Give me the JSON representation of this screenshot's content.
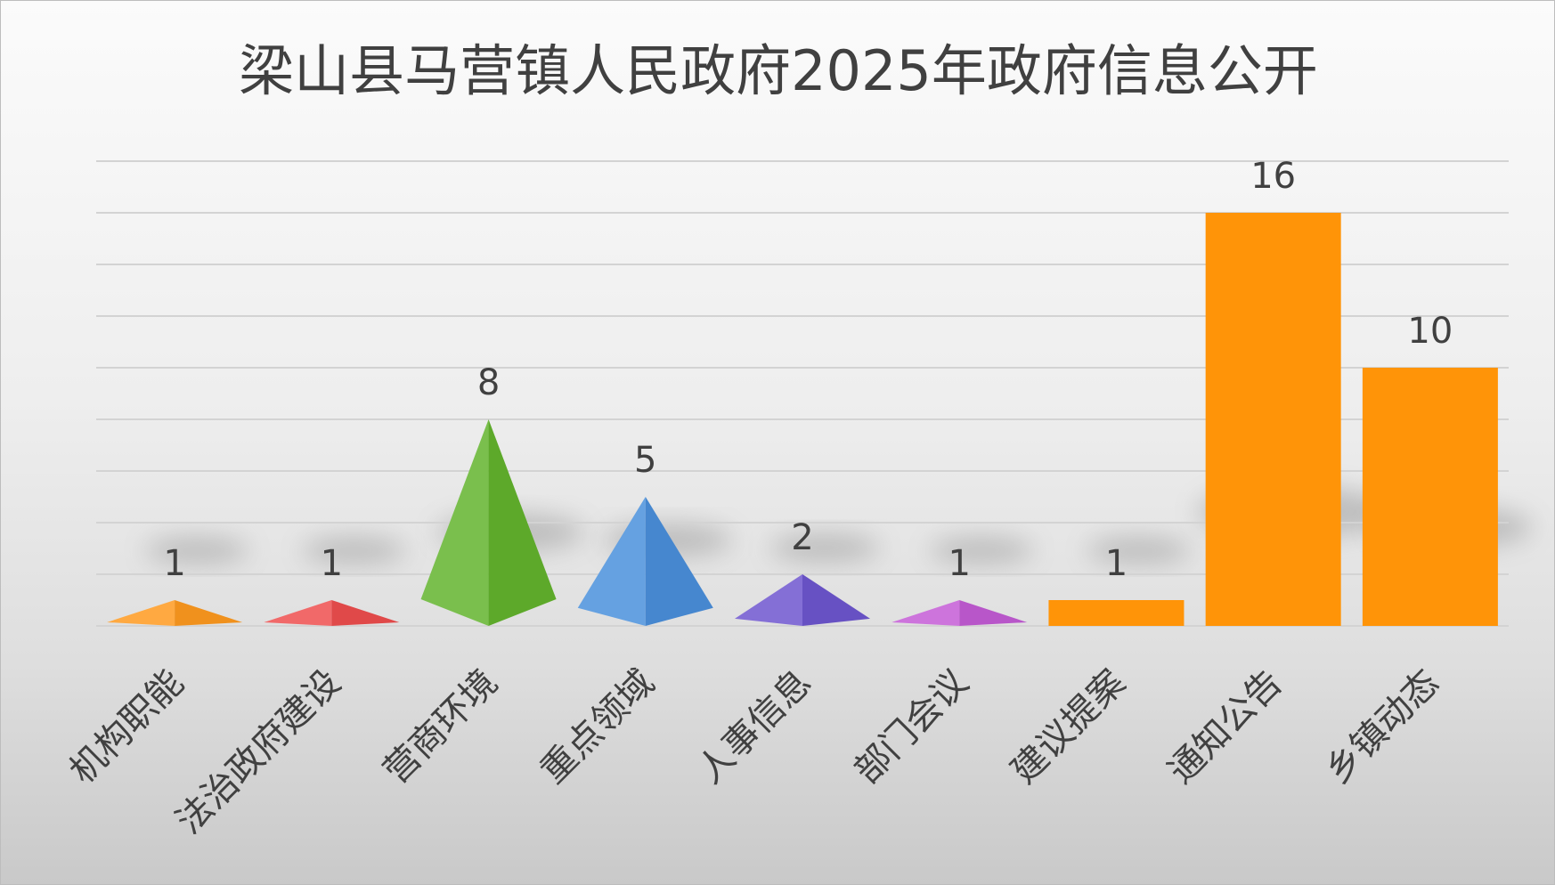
{
  "chart_data": {
    "type": "bar",
    "title": "梁山县马营镇人民政府2025年政府信息公开",
    "xlabel": "",
    "ylabel": "",
    "ylim": [
      0,
      18
    ],
    "grid": true,
    "categories": [
      "机构职能",
      "法治政府建设",
      "营商环境",
      "重点领域",
      "人事信息",
      "部门会议",
      "建议提案",
      "通知公告",
      "乡镇动态"
    ],
    "values": [
      1,
      1,
      8,
      5,
      2,
      1,
      1,
      16,
      10
    ],
    "shapes": [
      "pyramid",
      "pyramid",
      "pyramid",
      "pyramid",
      "pyramid",
      "pyramid",
      "bar",
      "bar",
      "bar"
    ],
    "colors": [
      "#FF9A1F",
      "#EE4E4E",
      "#63B42D",
      "#4A90DC",
      "#6E56CF",
      "#C45BD6",
      "#FF9408",
      "#FF9408",
      "#FF9408"
    ]
  }
}
